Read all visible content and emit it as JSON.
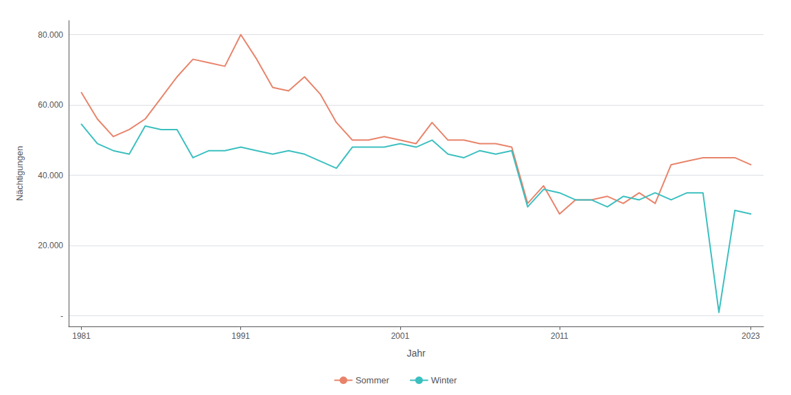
{
  "chart_data": {
    "type": "line",
    "xlabel": "Jahr",
    "ylabel": "Nächtigungen",
    "x": [
      1981,
      1982,
      1983,
      1984,
      1985,
      1986,
      1987,
      1988,
      1989,
      1990,
      1991,
      1992,
      1993,
      1994,
      1995,
      1996,
      1997,
      1998,
      1999,
      2000,
      2001,
      2002,
      2003,
      2004,
      2005,
      2006,
      2007,
      2008,
      2009,
      2010,
      2011,
      2012,
      2013,
      2014,
      2015,
      2016,
      2017,
      2018,
      2019,
      2020,
      2021,
      2022,
      2023
    ],
    "series": [
      {
        "name": "Sommer",
        "color": "#E8836A",
        "values": [
          63500,
          56000,
          51000,
          53000,
          56000,
          62000,
          68000,
          73000,
          72000,
          71000,
          80000,
          73000,
          65000,
          64000,
          68000,
          63000,
          55000,
          50000,
          50000,
          51000,
          50000,
          49000,
          55000,
          50000,
          50000,
          49000,
          49000,
          48000,
          32000,
          37000,
          29000,
          33000,
          33000,
          34000,
          32000,
          35000,
          32000,
          43000,
          44000,
          45000,
          45000,
          45000,
          43000
        ]
      },
      {
        "name": "Winter",
        "color": "#3BBFBF",
        "values": [
          54500,
          49000,
          47000,
          46000,
          54000,
          53000,
          53000,
          45000,
          47000,
          47000,
          48000,
          47000,
          46000,
          47000,
          46000,
          44000,
          42000,
          48000,
          48000,
          48000,
          49000,
          48000,
          50000,
          46000,
          45000,
          47000,
          46000,
          47000,
          31000,
          36000,
          35000,
          33000,
          33000,
          31000,
          34000,
          33000,
          35000,
          33000,
          35000,
          35000,
          1000,
          30000,
          29000
        ]
      }
    ],
    "xlim": [
      1980.2,
      2023.8
    ],
    "xticks": [
      1981,
      1991,
      2001,
      2011,
      2023
    ],
    "ylim": [
      -3000,
      84000
    ],
    "yticks": [
      {
        "value": 0,
        "label": "-"
      },
      {
        "value": 20000,
        "label": "20.000"
      },
      {
        "value": 40000,
        "label": "40.000"
      },
      {
        "value": 60000,
        "label": "60.000"
      },
      {
        "value": 80000,
        "label": "80.000"
      }
    ],
    "grid": true,
    "legend": "bottom"
  }
}
